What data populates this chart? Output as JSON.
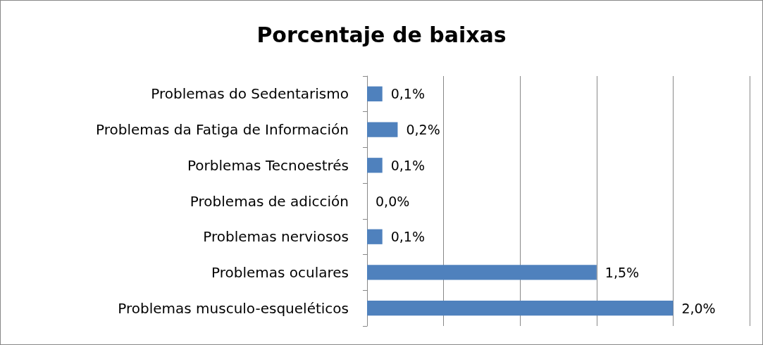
{
  "chart_data": {
    "type": "bar",
    "orientation": "horizontal",
    "title": "Porcentaje de baixas",
    "categories": [
      "Problemas do Sedentarismo",
      "Problemas da Fatiga de Información",
      "Porblemas Tecnoestrés",
      "Problemas de adicción",
      "Problemas nerviosos",
      "Problemas oculares",
      "Problemas musculo-esqueléticos"
    ],
    "values": [
      0.1,
      0.2,
      0.1,
      0.0,
      0.1,
      1.5,
      2.0
    ],
    "value_labels": [
      "0,1%",
      "0,2%",
      "0,1%",
      "0,0%",
      "0,1%",
      "1,5%",
      "2,0%"
    ],
    "color": "#4f81bd",
    "xlim": [
      0,
      2.5
    ],
    "xticks": [
      {
        "value": 0,
        "label": null
      },
      {
        "value": 0.5,
        "label": null
      },
      {
        "value": 1,
        "label": null
      },
      {
        "value": 1.5,
        "label": null
      },
      {
        "value": 2,
        "label": null
      },
      {
        "value": 2.5,
        "label": null
      }
    ],
    "grid": "x",
    "tick_labels": "y"
  }
}
